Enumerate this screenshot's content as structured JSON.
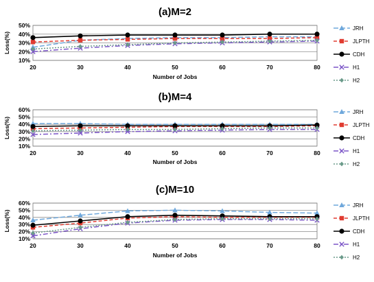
{
  "chart_data": [
    {
      "type": "line",
      "title": "(a)M=2",
      "xlabel": "Number of Jobs",
      "ylabel": "Loss(%)",
      "x": [
        20,
        30,
        40,
        50,
        60,
        70,
        80
      ],
      "ylim": [
        10,
        50
      ],
      "yticks": [
        "10%",
        "20%",
        "30%",
        "40%",
        "50%"
      ],
      "ytick_values": [
        10,
        20,
        30,
        40,
        50
      ],
      "grid": true,
      "legend_position": "right",
      "series": [
        {
          "name": "JRH",
          "values": [
            25,
            33,
            35,
            36,
            36,
            37,
            37
          ],
          "color": "#6fa8dc",
          "dash": "long",
          "marker": "triangle"
        },
        {
          "name": "JLPTH",
          "values": [
            31,
            33,
            34,
            35,
            35,
            35,
            36
          ],
          "color": "#e03c31",
          "dash": "medium",
          "marker": "square"
        },
        {
          "name": "CDH",
          "values": [
            36,
            38,
            39,
            39,
            39,
            40,
            40
          ],
          "color": "#000000",
          "dash": "solid",
          "marker": "circle"
        },
        {
          "name": "H1",
          "values": [
            20,
            24,
            27,
            29,
            30,
            31,
            32
          ],
          "color": "#7b55c7",
          "dash": "dashdot",
          "marker": "x"
        },
        {
          "name": "H2",
          "values": [
            23,
            26,
            28,
            30,
            31,
            32,
            33
          ],
          "color": "#6a9a8a",
          "dash": "dot",
          "marker": "diamond"
        }
      ]
    },
    {
      "type": "line",
      "title": "(b)M=4",
      "xlabel": "Number of Jobs",
      "ylabel": "Loss(%)",
      "x": [
        20,
        30,
        40,
        50,
        60,
        70,
        80
      ],
      "ylim": [
        10,
        60
      ],
      "yticks": [
        "10%",
        "20%",
        "30%",
        "40%",
        "50%",
        "60%"
      ],
      "ytick_values": [
        10,
        20,
        30,
        40,
        50,
        60
      ],
      "grid": true,
      "legend_position": "right",
      "series": [
        {
          "name": "JRH",
          "values": [
            41,
            41,
            40,
            40,
            40,
            40,
            40
          ],
          "color": "#6fa8dc",
          "dash": "long",
          "marker": "triangle"
        },
        {
          "name": "JLPTH",
          "values": [
            34,
            35,
            36,
            37,
            37,
            37,
            38
          ],
          "color": "#e03c31",
          "dash": "medium",
          "marker": "square"
        },
        {
          "name": "CDH",
          "values": [
            37,
            38,
            38,
            38,
            38,
            38,
            39
          ],
          "color": "#000000",
          "dash": "solid",
          "marker": "circle"
        },
        {
          "name": "H1",
          "values": [
            26,
            28,
            30,
            31,
            32,
            33,
            33
          ],
          "color": "#7b55c7",
          "dash": "dashdot",
          "marker": "x"
        },
        {
          "name": "H2",
          "values": [
            31,
            32,
            33,
            33,
            34,
            35,
            35
          ],
          "color": "#6a9a8a",
          "dash": "dot",
          "marker": "diamond"
        }
      ]
    },
    {
      "type": "line",
      "title": "(c)M=10",
      "xlabel": "Number of Jobs",
      "ylabel": "Loss(%)",
      "x": [
        20,
        30,
        40,
        50,
        60,
        70,
        80
      ],
      "ylim": [
        10,
        60
      ],
      "yticks": [
        "10%",
        "20%",
        "30%",
        "40%",
        "50%",
        "60%"
      ],
      "ytick_values": [
        10,
        20,
        30,
        40,
        50,
        60
      ],
      "grid": true,
      "legend_position": "right",
      "series": [
        {
          "name": "JRH",
          "values": [
            36,
            43,
            49,
            50,
            49,
            47,
            46
          ],
          "color": "#6fa8dc",
          "dash": "long",
          "marker": "triangle"
        },
        {
          "name": "JLPTH",
          "values": [
            26,
            32,
            39,
            41,
            40,
            40,
            40
          ],
          "color": "#e03c31",
          "dash": "medium",
          "marker": "square"
        },
        {
          "name": "CDH",
          "values": [
            29,
            35,
            41,
            43,
            42,
            41,
            41
          ],
          "color": "#000000",
          "dash": "solid",
          "marker": "circle"
        },
        {
          "name": "H1",
          "values": [
            14,
            24,
            32,
            36,
            37,
            37,
            36
          ],
          "color": "#7b55c7",
          "dash": "dashdot",
          "marker": "x"
        },
        {
          "name": "H2",
          "values": [
            18,
            26,
            33,
            37,
            38,
            38,
            38
          ],
          "color": "#6a9a8a",
          "dash": "dot",
          "marker": "diamond"
        }
      ]
    }
  ]
}
